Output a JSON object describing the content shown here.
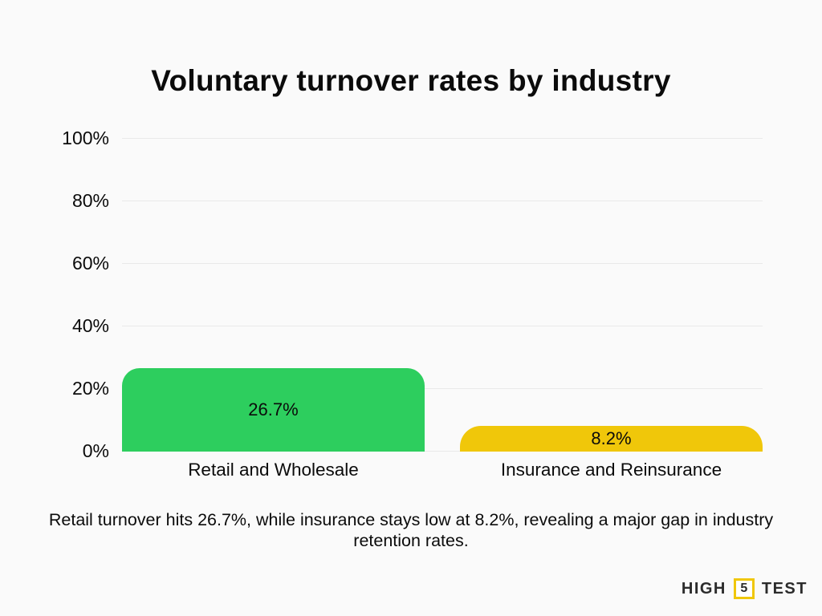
{
  "page": {
    "title": "Voluntary turnover rates by industry",
    "caption": "Retail turnover hits 26.7%, while insurance stays low at 8.2%, revealing a major gap in industry retention rates."
  },
  "chart_data": {
    "type": "bar",
    "title": "Voluntary turnover rates by industry",
    "categories": [
      "Retail and Wholesale",
      "Insurance and Reinsurance"
    ],
    "values": [
      26.7,
      8.2
    ],
    "value_labels": [
      "26.7%",
      "8.2%"
    ],
    "bar_colors": [
      "#2DCE5E",
      "#F0C70A"
    ],
    "xlabel": "",
    "ylabel": "",
    "ylim": [
      0,
      100
    ],
    "yticks": [
      0,
      20,
      40,
      60,
      80,
      100
    ],
    "ytick_labels": [
      "0%",
      "20%",
      "40%",
      "60%",
      "80%",
      "100%"
    ],
    "grid": true,
    "legend": false
  },
  "logo": {
    "part1": "HIGH",
    "number": "5",
    "part2": "TEST",
    "accent_color": "#F0C70A",
    "text_color": "#2B2B2B"
  },
  "colors": {
    "background": "#FAFAFA",
    "text": "#0B0B0B",
    "gridline": "#E9E9E9"
  }
}
